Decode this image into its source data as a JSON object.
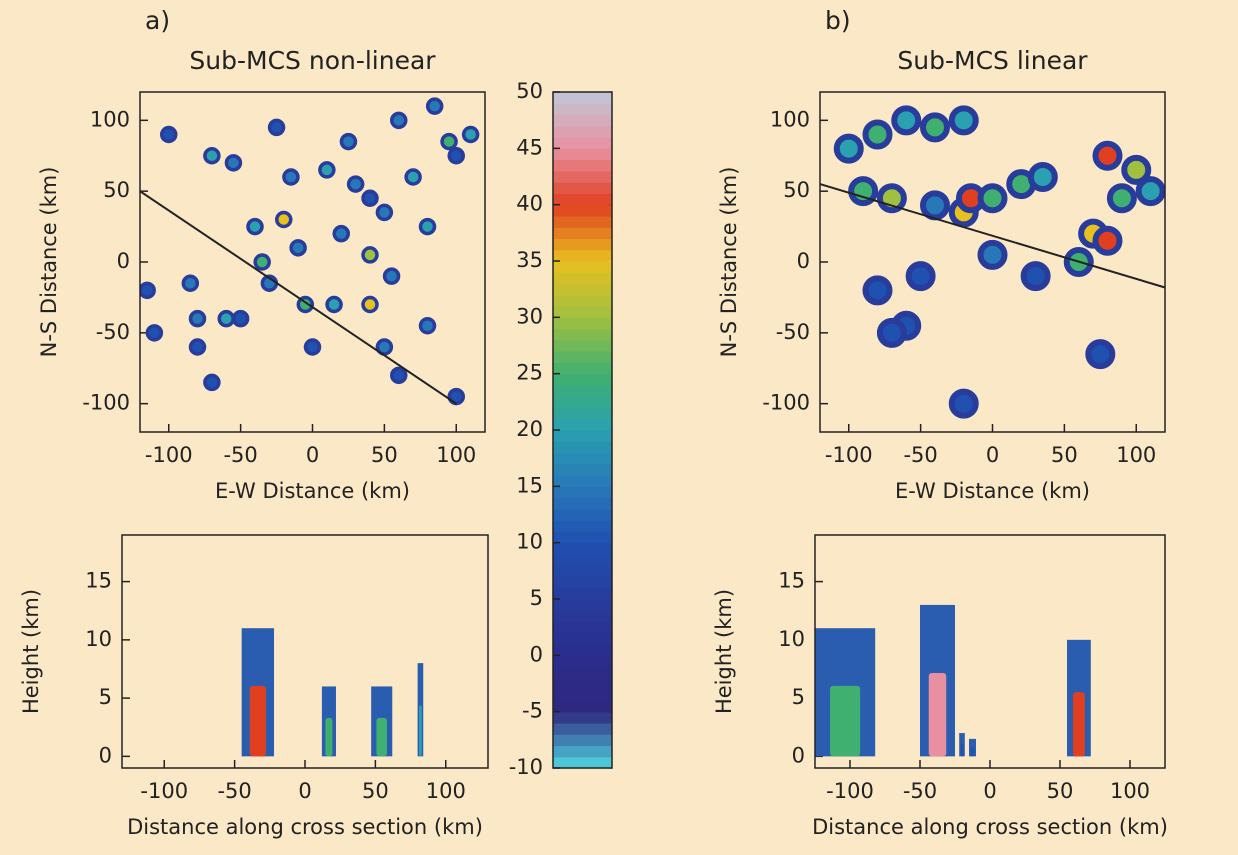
{
  "chart_data": [
    {
      "type": "radar_map",
      "panel_label": "a)",
      "title": "Sub-MCS non-linear",
      "xlabel": "E-W Distance (km)",
      "ylabel": "N-S Distance (km)",
      "xlim": [
        -120,
        120
      ],
      "ylim": [
        -120,
        120
      ],
      "xticks": [
        -100,
        -50,
        0,
        50,
        100
      ],
      "yticks": [
        -100,
        -50,
        0,
        50,
        100
      ],
      "marker_size": 7,
      "x": [
        -100,
        -70,
        -55,
        -25,
        -15,
        10,
        25,
        30,
        40,
        60,
        70,
        85,
        95,
        110,
        100,
        -40,
        -20,
        -35,
        -10,
        20,
        50,
        80,
        -85,
        -60,
        -80,
        -80,
        -70,
        -50,
        -30,
        -5,
        15,
        40,
        40,
        55,
        80,
        50,
        60,
        0,
        100,
        -115,
        -110
      ],
      "y": [
        90,
        75,
        70,
        95,
        60,
        65,
        85,
        55,
        45,
        100,
        60,
        110,
        85,
        90,
        75,
        25,
        30,
        0,
        10,
        20,
        35,
        25,
        -15,
        -40,
        -40,
        -60,
        -85,
        -40,
        -15,
        -30,
        -30,
        -30,
        5,
        -10,
        -45,
        -60,
        -80,
        -60,
        -95,
        -20,
        -50
      ],
      "values": [
        10,
        20,
        15,
        10,
        15,
        20,
        15,
        15,
        10,
        15,
        20,
        15,
        25,
        20,
        10,
        20,
        35,
        25,
        15,
        15,
        15,
        20,
        15,
        20,
        15,
        10,
        10,
        10,
        15,
        25,
        20,
        35,
        30,
        15,
        15,
        15,
        10,
        10,
        10,
        10,
        10
      ],
      "cross_section_line": {
        "x": [
          -120,
          100
        ],
        "y": [
          50,
          -100
        ]
      }
    },
    {
      "type": "radar_map",
      "panel_label": "b)",
      "title": "Sub-MCS linear",
      "xlabel": "E-W Distance (km)",
      "ylabel": "N-S Distance (km)",
      "xlim": [
        -120,
        120
      ],
      "ylim": [
        -120,
        120
      ],
      "xticks": [
        -100,
        -50,
        0,
        50,
        100
      ],
      "yticks": [
        -100,
        -50,
        0,
        50,
        100
      ],
      "marker_size": 12,
      "x": [
        -100,
        -80,
        -60,
        -40,
        -20,
        -90,
        -70,
        -40,
        -20,
        -15,
        0,
        20,
        35,
        80,
        100,
        110,
        90,
        70,
        80,
        60,
        -60,
        -70,
        -20,
        75,
        -80,
        -50,
        0,
        30
      ],
      "y": [
        80,
        90,
        100,
        95,
        100,
        50,
        45,
        40,
        35,
        45,
        45,
        55,
        60,
        75,
        65,
        50,
        45,
        20,
        15,
        0,
        -45,
        -50,
        -100,
        -65,
        -20,
        -10,
        5,
        -10
      ],
      "values": [
        20,
        25,
        20,
        25,
        20,
        25,
        30,
        15,
        35,
        40,
        25,
        25,
        20,
        40,
        30,
        20,
        25,
        35,
        40,
        25,
        10,
        10,
        10,
        10,
        10,
        10,
        15,
        10
      ],
      "cross_section_line": {
        "x": [
          -120,
          120
        ],
        "y": [
          55,
          -18
        ]
      }
    },
    {
      "type": "colorbar",
      "ylim": [
        -10,
        50
      ],
      "yticks": [
        -10,
        -5,
        0,
        5,
        10,
        15,
        20,
        25,
        30,
        35,
        40,
        45,
        50
      ],
      "colors": [
        "#50d8e0",
        "#302880",
        "#2a2c8c",
        "#283c9c",
        "#2050b0",
        "#2878b8",
        "#2aa0b0",
        "#40b070",
        "#a0c040",
        "#e8c020",
        "#e04020",
        "#e890a0",
        "#c0c8d8"
      ]
    },
    {
      "type": "cross_section",
      "xlabel": "Distance along cross section (km)",
      "ylabel": "Height (km)",
      "xlim": [
        -130,
        130
      ],
      "ylim": [
        -1,
        19
      ],
      "xticks": [
        -100,
        -50,
        0,
        50,
        100
      ],
      "yticks": [
        0,
        5,
        10,
        15
      ],
      "x_start": [
        -45,
        12,
        47,
        80
      ],
      "x_end": [
        -22,
        22,
        62,
        84
      ],
      "values": [
        11,
        6,
        6,
        8
      ],
      "max_dbz": [
        40,
        25,
        25,
        20
      ]
    },
    {
      "type": "cross_section",
      "xlabel": "Distance along cross section (km)",
      "ylabel": "Height (km)",
      "xlim": [
        -125,
        125
      ],
      "ylim": [
        -1,
        19
      ],
      "xticks": [
        -100,
        -50,
        0,
        50,
        100
      ],
      "yticks": [
        0,
        5,
        10,
        15
      ],
      "x_start": [
        -125,
        -50,
        -22,
        -15,
        55
      ],
      "x_end": [
        -82,
        -25,
        -18,
        -10,
        72
      ],
      "values": [
        11,
        13,
        2,
        1.5,
        10
      ],
      "max_dbz": [
        25,
        45,
        10,
        10,
        40
      ]
    }
  ]
}
